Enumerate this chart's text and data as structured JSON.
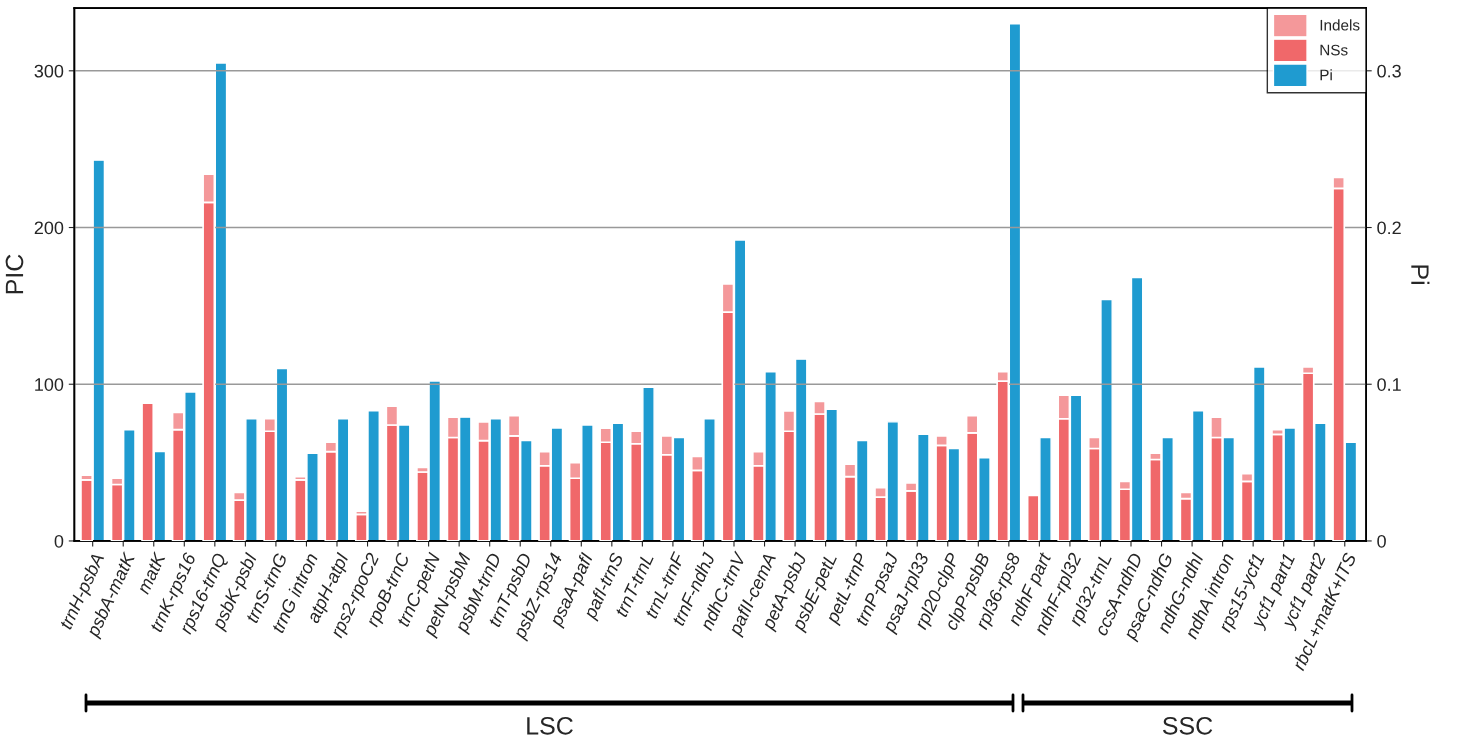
{
  "chart_data": {
    "type": "bar",
    "stacked": true,
    "ylabel": "PIC",
    "y2label": "Pi",
    "categories": [
      "trnH-psbA",
      "psbA-matK",
      "matK",
      "trnK-rps16",
      "rps16-trnQ",
      "psbK-psbI",
      "trnS-trnG",
      "trnG intron",
      "atpH-atpI",
      "rps2-rpoC2",
      "rpoB-trnC",
      "trnC-petN",
      "petN-psbM",
      "psbM-trnD",
      "trnT-psbD",
      "psbZ-rps14",
      "psaA-pafI",
      "pafI-trnS",
      "trnT-trnL",
      "trnL-trnF",
      "trnF-ndhJ",
      "ndhC-trnV",
      "pafII-cemA",
      "petA-psbJ",
      "psbE-petL",
      "petL-trnP",
      "trnP-psaJ",
      "psaJ-rpl33",
      "rpl20-clpP",
      "clpP-psbB",
      "rpl36-rps8",
      "ndhF part",
      "ndhF-rpl32",
      "rpl32-trnL",
      "ccsA-ndhD",
      "psaC-ndhG",
      "ndhG-ndhI",
      "ndhA intron",
      "rps15-ycf1",
      "ycf1 part1",
      "ycf1 part2",
      "rbcL+matK+ITS"
    ],
    "series": [
      {
        "name": "NSs",
        "color": "#f0686a",
        "values": [
          39,
          36,
          88,
          71,
          216,
          26,
          70,
          39,
          57,
          17,
          74,
          44,
          66,
          64,
          67,
          48,
          40,
          63,
          62,
          55,
          45,
          146,
          48,
          70,
          81,
          41,
          28,
          32,
          61,
          69,
          102,
          29,
          78,
          59,
          33,
          52,
          27,
          66,
          38,
          68,
          107,
          225
        ]
      },
      {
        "name": "Indels",
        "color": "#f4989a",
        "values": [
          3,
          4,
          0,
          11,
          18,
          5,
          8,
          2,
          6,
          2,
          12,
          3,
          13,
          12,
          13,
          9,
          10,
          9,
          8,
          12,
          9,
          18,
          9,
          13,
          8,
          8,
          6,
          5,
          6,
          11,
          6,
          0,
          15,
          7,
          5,
          4,
          4,
          13,
          5,
          3,
          4,
          7
        ]
      },
      {
        "name": "Pi",
        "color": "#1f9bd0",
        "axis": "y2",
        "values": [
          0.243,
          0.071,
          0.057,
          0.095,
          0.305,
          0.078,
          0.11,
          0.056,
          0.078,
          0.083,
          0.074,
          0.102,
          0.079,
          0.078,
          0.064,
          0.072,
          0.074,
          0.075,
          0.098,
          0.066,
          0.078,
          0.192,
          0.108,
          0.116,
          0.084,
          0.064,
          0.076,
          0.068,
          0.059,
          0.053,
          0.33,
          0.066,
          0.093,
          0.154,
          0.168,
          0.066,
          0.083,
          0.066,
          0.111,
          0.072,
          0.075,
          0.063
        ]
      }
    ],
    "ylim": [
      0,
      340
    ],
    "yticks": [
      0,
      100,
      200,
      300
    ],
    "y2lim": [
      0,
      0.34
    ],
    "y2ticks": [
      0,
      0.1,
      0.2,
      0.3
    ],
    "grid": "y",
    "legend": "top right",
    "annotations": [
      "LSC",
      "SSC"
    ]
  }
}
